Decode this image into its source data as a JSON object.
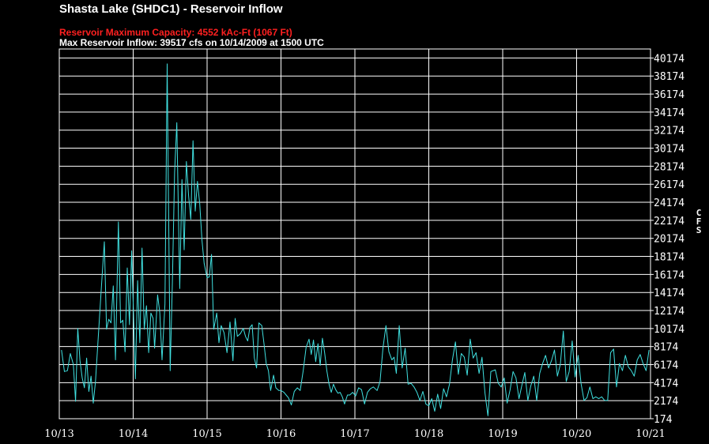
{
  "chart_data": {
    "type": "line",
    "title": "Shasta Lake (SHDC1) - Reservoir Inflow",
    "subtitle_red": "Reservoir Maximum Capacity: 4552 kAc-Ft (1067 Ft)",
    "subtitle_white": "Max Reservoir Inflow: 39517 cfs on 10/14/2009 at 1500 UTC",
    "ylabel": "CFS",
    "ylim": [
      174,
      41174
    ],
    "xlim": [
      0,
      8.0
    ],
    "yticks": [
      "40174",
      "38174",
      "36174",
      "34174",
      "32174",
      "30174",
      "28174",
      "26174",
      "24174",
      "22174",
      "20174",
      "18174",
      "16174",
      "14174",
      "12174",
      "10174",
      "8174",
      "6174",
      "4174",
      "2174",
      "174"
    ],
    "xticks": [
      "10/13",
      "10/14",
      "10/15",
      "10/16",
      "10/17",
      "10/18",
      "10/19",
      "10/20",
      "10/21"
    ],
    "grid": true,
    "colors": {
      "line": "#40e0e0",
      "background": "#000000",
      "grid": "#ffffff",
      "axes": "#ffffff"
    },
    "series": [
      {
        "values": [
          [
            0.03,
            7800
          ],
          [
            0.07,
            5400
          ],
          [
            0.11,
            5500
          ],
          [
            0.15,
            7400
          ],
          [
            0.19,
            6200
          ],
          [
            0.22,
            2100
          ],
          [
            0.25,
            10200
          ],
          [
            0.28,
            6600
          ],
          [
            0.31,
            4700
          ],
          [
            0.34,
            3600
          ],
          [
            0.37,
            6900
          ],
          [
            0.4,
            3200
          ],
          [
            0.43,
            4900
          ],
          [
            0.46,
            1900
          ],
          [
            0.49,
            4300
          ],
          [
            0.57,
            14800
          ],
          [
            0.61,
            19800
          ],
          [
            0.64,
            10100
          ],
          [
            0.67,
            11200
          ],
          [
            0.7,
            10800
          ],
          [
            0.73,
            14900
          ],
          [
            0.76,
            6700
          ],
          [
            0.8,
            22000
          ],
          [
            0.83,
            10800
          ],
          [
            0.86,
            11100
          ],
          [
            0.89,
            7600
          ],
          [
            0.92,
            16900
          ],
          [
            0.95,
            10600
          ],
          [
            0.98,
            18800
          ],
          [
            1.01,
            10300
          ],
          [
            1.03,
            4600
          ],
          [
            1.06,
            15500
          ],
          [
            1.09,
            8600
          ],
          [
            1.12,
            19100
          ],
          [
            1.15,
            10100
          ],
          [
            1.18,
            12700
          ],
          [
            1.21,
            7500
          ],
          [
            1.24,
            11900
          ],
          [
            1.27,
            11300
          ],
          [
            1.29,
            8000
          ],
          [
            1.33,
            13900
          ],
          [
            1.36,
            11900
          ],
          [
            1.39,
            6700
          ],
          [
            1.43,
            12900
          ],
          [
            1.46,
            39517
          ],
          [
            1.5,
            5500
          ],
          [
            1.53,
            15300
          ],
          [
            1.56,
            27500
          ],
          [
            1.59,
            33000
          ],
          [
            1.63,
            14600
          ],
          [
            1.66,
            26700
          ],
          [
            1.69,
            18900
          ],
          [
            1.72,
            28700
          ],
          [
            1.75,
            24900
          ],
          [
            1.78,
            22300
          ],
          [
            1.81,
            31000
          ],
          [
            1.84,
            23200
          ],
          [
            1.87,
            26500
          ],
          [
            1.9,
            24000
          ],
          [
            1.93,
            20000
          ],
          [
            1.96,
            17400
          ],
          [
            2.0,
            15800
          ],
          [
            2.03,
            15900
          ],
          [
            2.06,
            18400
          ],
          [
            2.09,
            10100
          ],
          [
            2.13,
            11900
          ],
          [
            2.16,
            8600
          ],
          [
            2.19,
            10500
          ],
          [
            2.23,
            9700
          ],
          [
            2.27,
            7500
          ],
          [
            2.31,
            10900
          ],
          [
            2.35,
            6600
          ],
          [
            2.38,
            11300
          ],
          [
            2.41,
            9300
          ],
          [
            2.45,
            9600
          ],
          [
            2.49,
            10200
          ],
          [
            2.52,
            9300
          ],
          [
            2.55,
            8800
          ],
          [
            2.58,
            10300
          ],
          [
            2.61,
            10600
          ],
          [
            2.64,
            6900
          ],
          [
            2.67,
            5800
          ],
          [
            2.7,
            10800
          ],
          [
            2.74,
            10500
          ],
          [
            2.77,
            8500
          ],
          [
            2.8,
            6300
          ],
          [
            2.83,
            5500
          ],
          [
            2.86,
            3300
          ],
          [
            2.9,
            5000
          ],
          [
            2.93,
            3600
          ],
          [
            2.97,
            3300
          ],
          [
            3.0,
            3300
          ],
          [
            3.04,
            3100
          ],
          [
            3.07,
            2800
          ],
          [
            3.1,
            2500
          ],
          [
            3.14,
            1700
          ],
          [
            3.18,
            3200
          ],
          [
            3.22,
            3600
          ],
          [
            3.26,
            3300
          ],
          [
            3.3,
            5500
          ],
          [
            3.34,
            8100
          ],
          [
            3.38,
            9000
          ],
          [
            3.41,
            7300
          ],
          [
            3.44,
            8900
          ],
          [
            3.47,
            6500
          ],
          [
            3.5,
            8500
          ],
          [
            3.53,
            6100
          ],
          [
            3.56,
            9100
          ],
          [
            3.59,
            7500
          ],
          [
            3.62,
            5500
          ],
          [
            3.65,
            4000
          ],
          [
            3.68,
            3100
          ],
          [
            3.71,
            4000
          ],
          [
            3.74,
            3400
          ],
          [
            3.77,
            3000
          ],
          [
            3.8,
            3100
          ],
          [
            3.83,
            2600
          ],
          [
            3.86,
            1800
          ],
          [
            3.9,
            2800
          ],
          [
            3.93,
            2800
          ],
          [
            3.97,
            3100
          ],
          [
            4.01,
            2700
          ],
          [
            4.05,
            3600
          ],
          [
            4.09,
            3400
          ],
          [
            4.13,
            1800
          ],
          [
            4.17,
            3100
          ],
          [
            4.21,
            3500
          ],
          [
            4.25,
            3700
          ],
          [
            4.3,
            3300
          ],
          [
            4.34,
            4300
          ],
          [
            4.38,
            8000
          ],
          [
            4.42,
            10500
          ],
          [
            4.46,
            7600
          ],
          [
            4.5,
            6700
          ],
          [
            4.53,
            7000
          ],
          [
            4.56,
            5200
          ],
          [
            4.6,
            10500
          ],
          [
            4.64,
            5800
          ],
          [
            4.68,
            8000
          ],
          [
            4.72,
            4000
          ],
          [
            4.76,
            4100
          ],
          [
            4.8,
            3700
          ],
          [
            4.84,
            3100
          ],
          [
            4.88,
            2200
          ],
          [
            4.92,
            3200
          ],
          [
            4.96,
            1800
          ],
          [
            5.0,
            1600
          ],
          [
            5.04,
            2400
          ],
          [
            5.08,
            1000
          ],
          [
            5.12,
            2900
          ],
          [
            5.16,
            1300
          ],
          [
            5.2,
            3500
          ],
          [
            5.24,
            2600
          ],
          [
            5.28,
            4000
          ],
          [
            5.32,
            6700
          ],
          [
            5.36,
            8700
          ],
          [
            5.4,
            5100
          ],
          [
            5.44,
            7400
          ],
          [
            5.48,
            7000
          ],
          [
            5.52,
            5000
          ],
          [
            5.56,
            9000
          ],
          [
            5.6,
            6900
          ],
          [
            5.64,
            7500
          ],
          [
            5.68,
            5200
          ],
          [
            5.72,
            7000
          ],
          [
            5.76,
            3000
          ],
          [
            5.8,
            500
          ],
          [
            5.84,
            5400
          ],
          [
            5.9,
            5600
          ],
          [
            5.94,
            4100
          ],
          [
            5.98,
            3700
          ],
          [
            6.02,
            4700
          ],
          [
            6.06,
            1900
          ],
          [
            6.1,
            3400
          ],
          [
            6.14,
            5400
          ],
          [
            6.18,
            4700
          ],
          [
            6.22,
            2400
          ],
          [
            6.26,
            3900
          ],
          [
            6.3,
            5300
          ],
          [
            6.34,
            2200
          ],
          [
            6.38,
            3800
          ],
          [
            6.42,
            4900
          ],
          [
            6.46,
            2200
          ],
          [
            6.5,
            5200
          ],
          [
            6.54,
            6300
          ],
          [
            6.58,
            7200
          ],
          [
            6.62,
            5800
          ],
          [
            6.66,
            6600
          ],
          [
            6.7,
            7800
          ],
          [
            6.74,
            4900
          ],
          [
            6.78,
            6200
          ],
          [
            6.82,
            9900
          ],
          [
            6.86,
            4300
          ],
          [
            6.9,
            5400
          ],
          [
            6.94,
            8800
          ],
          [
            6.98,
            4800
          ],
          [
            7.02,
            7200
          ],
          [
            7.06,
            4100
          ],
          [
            7.1,
            2200
          ],
          [
            7.14,
            2500
          ],
          [
            7.18,
            3700
          ],
          [
            7.22,
            2400
          ],
          [
            7.26,
            2600
          ],
          [
            7.3,
            2400
          ],
          [
            7.34,
            2600
          ],
          [
            7.38,
            2200
          ],
          [
            7.42,
            2200
          ],
          [
            7.46,
            7500
          ],
          [
            7.5,
            7900
          ],
          [
            7.54,
            3700
          ],
          [
            7.58,
            6300
          ],
          [
            7.62,
            5500
          ],
          [
            7.66,
            7200
          ],
          [
            7.7,
            5900
          ],
          [
            7.74,
            5500
          ],
          [
            7.78,
            4900
          ],
          [
            7.82,
            6700
          ],
          [
            7.86,
            7300
          ],
          [
            7.9,
            6300
          ],
          [
            7.94,
            5500
          ],
          [
            7.98,
            7800
          ]
        ]
      }
    ]
  }
}
